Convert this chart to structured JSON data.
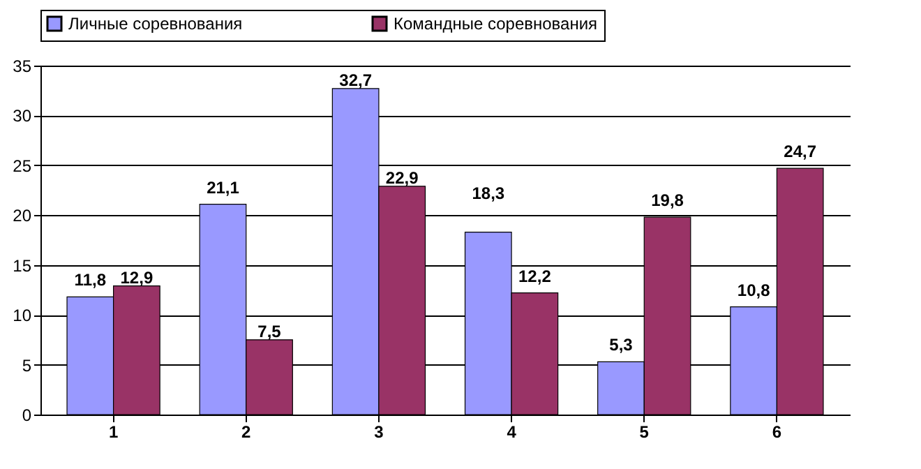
{
  "chart_data": {
    "type": "bar",
    "categories": [
      "1",
      "2",
      "3",
      "4",
      "5",
      "6"
    ],
    "series": [
      {
        "name": "Личные соревнования",
        "color": "#9999ff",
        "values": [
          11.8,
          21.1,
          32.7,
          18.3,
          5.3,
          10.8
        ],
        "value_labels": [
          "11,8",
          "21,1",
          "32,7",
          "18,3",
          "5,3",
          "10,8"
        ]
      },
      {
        "name": "Командные соревнования",
        "color": "#993366",
        "values": [
          12.9,
          7.5,
          22.9,
          12.2,
          19.8,
          24.7
        ],
        "value_labels": [
          "12,9",
          "7,5",
          "22,9",
          "12,2",
          "19,8",
          "24,7"
        ]
      }
    ],
    "ylim": [
      0,
      35
    ],
    "yticks": [
      0,
      5,
      10,
      15,
      20,
      25,
      30,
      35
    ],
    "grid": "y",
    "legend": "top"
  }
}
